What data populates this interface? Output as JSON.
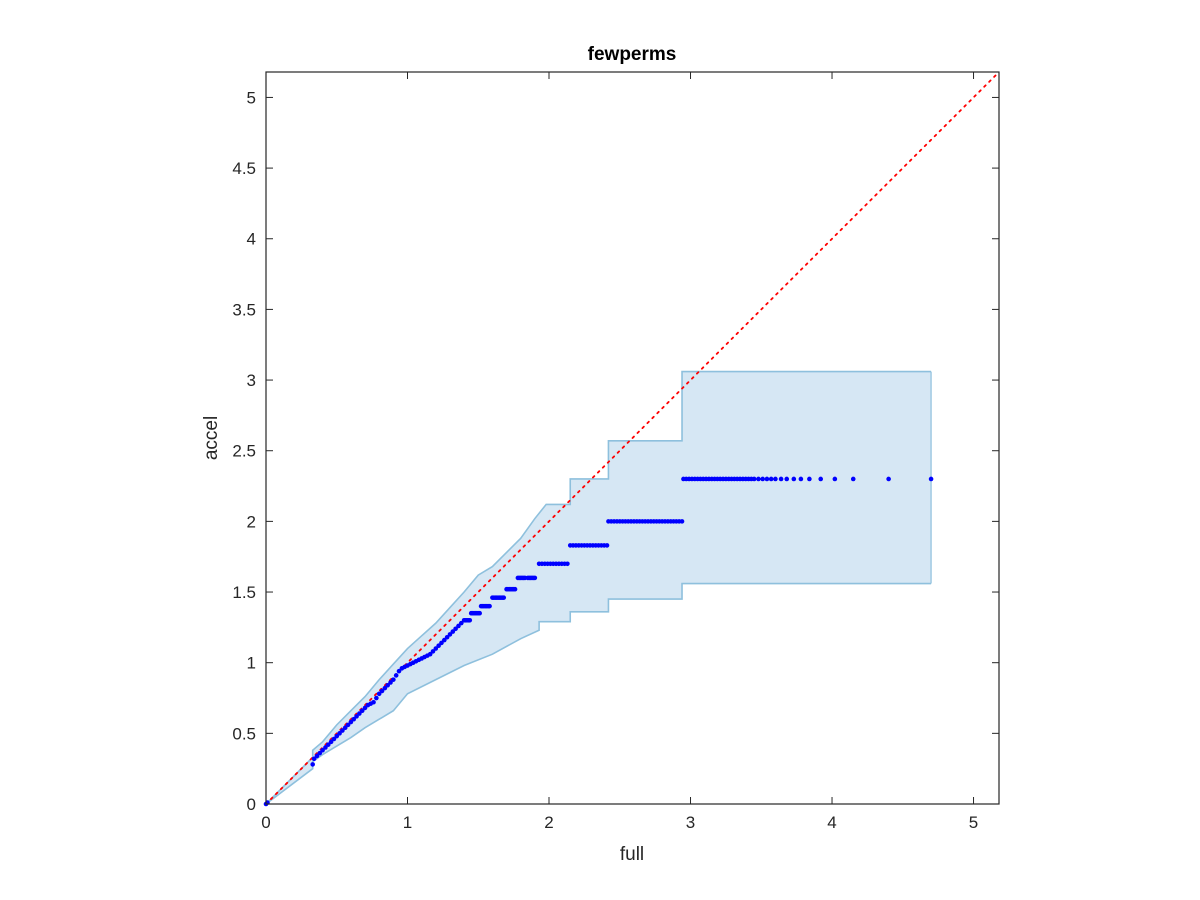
{
  "chart_data": {
    "type": "scatter",
    "title": "fewperms",
    "xlabel": "full",
    "ylabel": "accel",
    "xlim": [
      0,
      5.18
    ],
    "ylim": [
      0,
      5.18
    ],
    "xticks": [
      "0",
      "1",
      "2",
      "3",
      "4",
      "5"
    ],
    "yticks": [
      "0",
      "0.5",
      "1",
      "1.5",
      "2",
      "2.5",
      "3",
      "3.5",
      "4",
      "4.5",
      "5"
    ],
    "grid": false,
    "legend": "none",
    "colors": {
      "points": "#0000ff",
      "band_fill": "#d6e7f4",
      "band_edge": "#8ec0dd",
      "identity_line": "#ff0000",
      "axes": "#262626"
    },
    "reference_line": {
      "style": "dotted",
      "from": [
        0,
        0
      ],
      "to": [
        5.18,
        5.18
      ]
    },
    "band_upper": [
      [
        0,
        0
      ],
      [
        0.33,
        0.33
      ],
      [
        0.33,
        0.38
      ],
      [
        0.4,
        0.44
      ],
      [
        0.5,
        0.56
      ],
      [
        0.6,
        0.66
      ],
      [
        0.7,
        0.76
      ],
      [
        0.8,
        0.88
      ],
      [
        0.9,
        0.99
      ],
      [
        1.0,
        1.1
      ],
      [
        1.1,
        1.19
      ],
      [
        1.2,
        1.28
      ],
      [
        1.3,
        1.39
      ],
      [
        1.4,
        1.5
      ],
      [
        1.5,
        1.62
      ],
      [
        1.6,
        1.68
      ],
      [
        1.7,
        1.78
      ],
      [
        1.8,
        1.88
      ],
      [
        1.9,
        2.02
      ],
      [
        1.98,
        2.12
      ],
      [
        2.15,
        2.12
      ],
      [
        2.15,
        2.3
      ],
      [
        2.42,
        2.3
      ],
      [
        2.42,
        2.57
      ],
      [
        2.94,
        2.57
      ],
      [
        2.94,
        3.06
      ],
      [
        4.7,
        3.06
      ]
    ],
    "band_lower": [
      [
        0,
        0
      ],
      [
        0.33,
        0.25
      ],
      [
        0.33,
        0.3
      ],
      [
        0.4,
        0.35
      ],
      [
        0.5,
        0.41
      ],
      [
        0.6,
        0.47
      ],
      [
        0.7,
        0.54
      ],
      [
        0.8,
        0.6
      ],
      [
        0.9,
        0.66
      ],
      [
        1.0,
        0.78
      ],
      [
        1.2,
        0.88
      ],
      [
        1.4,
        0.98
      ],
      [
        1.6,
        1.06
      ],
      [
        1.8,
        1.17
      ],
      [
        1.93,
        1.23
      ],
      [
        1.93,
        1.29
      ],
      [
        2.15,
        1.29
      ],
      [
        2.15,
        1.36
      ],
      [
        2.42,
        1.36
      ],
      [
        2.42,
        1.45
      ],
      [
        2.94,
        1.45
      ],
      [
        2.94,
        1.56
      ],
      [
        4.7,
        1.56
      ]
    ],
    "points_x": [
      0,
      0.01,
      0.33,
      0.34,
      0.36,
      0.38,
      0.4,
      0.42,
      0.44,
      0.46,
      0.48,
      0.5,
      0.52,
      0.54,
      0.56,
      0.58,
      0.6,
      0.62,
      0.64,
      0.66,
      0.68,
      0.7,
      0.72,
      0.74,
      0.76,
      0.78,
      0.8,
      0.82,
      0.84,
      0.86,
      0.88,
      0.9,
      0.92,
      0.94,
      0.96,
      0.98,
      1.0,
      1.02,
      1.04,
      1.06,
      1.08,
      1.1,
      1.12,
      1.14,
      1.16,
      1.18,
      1.2,
      1.22,
      1.24,
      1.26,
      1.28,
      1.3,
      1.32,
      1.34,
      1.36,
      1.38,
      1.4,
      1.41,
      1.42,
      1.43,
      1.44,
      1.45,
      1.46,
      1.47,
      1.48,
      1.49,
      1.5,
      1.51,
      1.52,
      1.53,
      1.54,
      1.55,
      1.56,
      1.57,
      1.58,
      1.6,
      1.61,
      1.62,
      1.63,
      1.64,
      1.65,
      1.66,
      1.67,
      1.68,
      1.7,
      1.71,
      1.72,
      1.73,
      1.74,
      1.75,
      1.76,
      1.78,
      1.79,
      1.8,
      1.81,
      1.82,
      1.83,
      1.85,
      1.86,
      1.87,
      1.88,
      1.89,
      1.9,
      1.93,
      1.95,
      1.97,
      1.99,
      2.01,
      2.03,
      2.05,
      2.07,
      2.09,
      2.11,
      2.13,
      2.15,
      2.17,
      2.19,
      2.21,
      2.23,
      2.25,
      2.27,
      2.29,
      2.31,
      2.33,
      2.35,
      2.37,
      2.39,
      2.41,
      2.42,
      2.44,
      2.46,
      2.48,
      2.5,
      2.52,
      2.54,
      2.56,
      2.58,
      2.6,
      2.62,
      2.64,
      2.66,
      2.68,
      2.7,
      2.72,
      2.74,
      2.76,
      2.78,
      2.8,
      2.82,
      2.84,
      2.86,
      2.88,
      2.9,
      2.92,
      2.94,
      2.95,
      2.97,
      2.99,
      3.01,
      3.03,
      3.05,
      3.07,
      3.09,
      3.11,
      3.13,
      3.15,
      3.17,
      3.19,
      3.21,
      3.23,
      3.25,
      3.27,
      3.29,
      3.31,
      3.33,
      3.35,
      3.37,
      3.39,
      3.41,
      3.43,
      3.45,
      3.48,
      3.51,
      3.54,
      3.57,
      3.6,
      3.64,
      3.68,
      3.73,
      3.78,
      3.84,
      3.92,
      4.02,
      4.15,
      4.4,
      4.7
    ],
    "points_y": [
      0,
      0.01,
      0.28,
      0.32,
      0.34,
      0.36,
      0.38,
      0.4,
      0.42,
      0.44,
      0.46,
      0.48,
      0.5,
      0.52,
      0.54,
      0.56,
      0.58,
      0.6,
      0.62,
      0.64,
      0.66,
      0.68,
      0.7,
      0.71,
      0.72,
      0.75,
      0.78,
      0.8,
      0.82,
      0.84,
      0.86,
      0.88,
      0.91,
      0.94,
      0.96,
      0.97,
      0.98,
      0.99,
      1.0,
      1.01,
      1.02,
      1.03,
      1.04,
      1.05,
      1.06,
      1.08,
      1.1,
      1.12,
      1.14,
      1.16,
      1.18,
      1.2,
      1.22,
      1.24,
      1.26,
      1.28,
      1.3,
      1.3,
      1.3,
      1.3,
      1.3,
      1.35,
      1.35,
      1.35,
      1.35,
      1.35,
      1.35,
      1.35,
      1.4,
      1.4,
      1.4,
      1.4,
      1.4,
      1.4,
      1.4,
      1.46,
      1.46,
      1.46,
      1.46,
      1.46,
      1.46,
      1.46,
      1.46,
      1.46,
      1.52,
      1.52,
      1.52,
      1.52,
      1.52,
      1.52,
      1.52,
      1.6,
      1.6,
      1.6,
      1.6,
      1.6,
      1.6,
      1.6,
      1.6,
      1.6,
      1.6,
      1.6,
      1.6,
      1.7,
      1.7,
      1.7,
      1.7,
      1.7,
      1.7,
      1.7,
      1.7,
      1.7,
      1.7,
      1.7,
      1.83,
      1.83,
      1.83,
      1.83,
      1.83,
      1.83,
      1.83,
      1.83,
      1.83,
      1.83,
      1.83,
      1.83,
      1.83,
      1.83,
      2.0,
      2.0,
      2.0,
      2.0,
      2.0,
      2.0,
      2.0,
      2.0,
      2.0,
      2.0,
      2.0,
      2.0,
      2.0,
      2.0,
      2.0,
      2.0,
      2.0,
      2.0,
      2.0,
      2.0,
      2.0,
      2.0,
      2.0,
      2.0,
      2.0,
      2.0,
      2.0,
      2.3,
      2.3,
      2.3,
      2.3,
      2.3,
      2.3,
      2.3,
      2.3,
      2.3,
      2.3,
      2.3,
      2.3,
      2.3,
      2.3,
      2.3,
      2.3,
      2.3,
      2.3,
      2.3,
      2.3,
      2.3,
      2.3,
      2.3,
      2.3,
      2.3,
      2.3,
      2.3,
      2.3,
      2.3,
      2.3,
      2.3,
      2.3,
      2.3,
      2.3,
      2.3,
      2.3,
      2.3,
      2.3,
      2.3,
      2.3,
      2.3
    ]
  }
}
